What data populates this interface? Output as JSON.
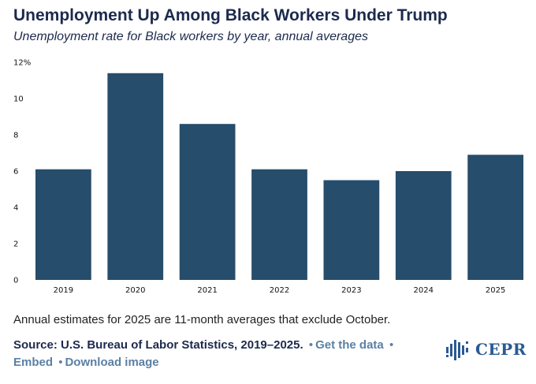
{
  "header": {
    "title": "Unemployment Up Among Black Workers Under Trump",
    "subtitle": "Unemployment rate for Black workers by year, annual averages"
  },
  "colors": {
    "bar": "#264d6b",
    "title": "#1c2a4d",
    "link": "#5b80a5",
    "logo": "#2a5a92"
  },
  "chart_data": {
    "type": "bar",
    "title": "Unemployment Up Among Black Workers Under Trump",
    "subtitle": "Unemployment rate for Black workers by year, annual averages",
    "categories": [
      "2019",
      "2020",
      "2021",
      "2022",
      "2023",
      "2024",
      "2025"
    ],
    "values": [
      6.1,
      11.4,
      8.6,
      6.1,
      5.5,
      6.0,
      6.9
    ],
    "ylim": [
      0,
      12
    ],
    "yticks": [
      0,
      2,
      4,
      6,
      8,
      10,
      12
    ],
    "ytick_labels": [
      "0",
      "2",
      "4",
      "6",
      "8",
      "10",
      "12%"
    ],
    "xlabel": "",
    "ylabel": "",
    "grid": false
  },
  "footer": {
    "note": "Annual estimates for 2025 are 11-month averages that exclude October.",
    "source": "Source: U.S. Bureau of Labor Statistics, 2019–2025.",
    "get_data": "Get the data",
    "embed": "Embed",
    "download": "Download image",
    "separator": "•"
  },
  "logo": {
    "text": "CEPR",
    "icon": "cepr-bars-icon"
  }
}
